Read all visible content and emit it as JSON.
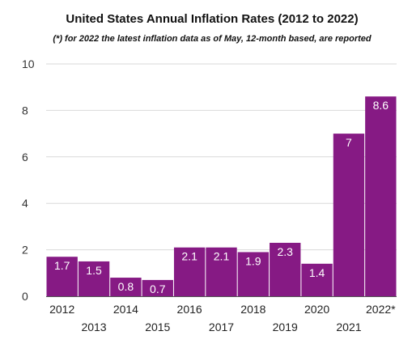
{
  "chart_data": {
    "type": "bar",
    "title": "United States Annual Inflation Rates (2012 to 2022)",
    "subtitle": "(*) for 2022 the latest inflation data as of May, 12-month based, are reported",
    "categories": [
      "2012",
      "2013",
      "2014",
      "2015",
      "2016",
      "2017",
      "2018",
      "2019",
      "2020",
      "2021",
      "2022*"
    ],
    "values": [
      1.7,
      1.5,
      0.8,
      0.7,
      2.1,
      2.1,
      1.9,
      2.3,
      1.4,
      7,
      8.6
    ],
    "data_labels": [
      "1.7",
      "1.5",
      "0.8",
      "0.7",
      "2.1",
      "2.1",
      "1.9",
      "2.3",
      "1.4",
      "7",
      "8.6"
    ],
    "yticks": [
      "0",
      "2",
      "4",
      "6",
      "8",
      "10"
    ],
    "ylim": [
      0,
      10
    ],
    "xlabel": "",
    "ylabel": "",
    "grid": true,
    "bar_color": "#861a84"
  }
}
